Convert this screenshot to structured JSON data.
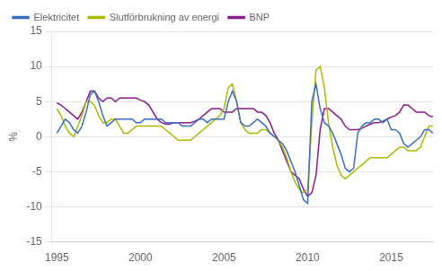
{
  "chart_data": {
    "type": "line",
    "ylabel": "%",
    "x": [
      1995.0,
      1995.25,
      1995.5,
      1995.75,
      1996.0,
      1996.25,
      1996.5,
      1996.75,
      1997.0,
      1997.25,
      1997.5,
      1997.75,
      1998.0,
      1998.25,
      1998.5,
      1998.75,
      1999.0,
      1999.25,
      1999.5,
      1999.75,
      2000.0,
      2000.25,
      2000.5,
      2000.75,
      2001.0,
      2001.25,
      2001.5,
      2001.75,
      2002.0,
      2002.25,
      2002.5,
      2002.75,
      2003.0,
      2003.25,
      2003.5,
      2003.75,
      2004.0,
      2004.25,
      2004.5,
      2004.75,
      2005.0,
      2005.25,
      2005.5,
      2005.75,
      2006.0,
      2006.25,
      2006.5,
      2006.75,
      2007.0,
      2007.25,
      2007.5,
      2007.75,
      2008.0,
      2008.25,
      2008.5,
      2008.75,
      2009.0,
      2009.25,
      2009.5,
      2009.75,
      2010.0,
      2010.25,
      2010.5,
      2010.75,
      2011.0,
      2011.25,
      2011.5,
      2011.75,
      2012.0,
      2012.25,
      2012.5,
      2012.75,
      2013.0,
      2013.25,
      2013.5,
      2013.75,
      2014.0,
      2014.25,
      2014.5,
      2014.75,
      2015.0,
      2015.25,
      2015.5,
      2015.75,
      2016.0,
      2016.25,
      2016.5,
      2016.75,
      2017.0,
      2017.25,
      2017.5
    ],
    "series": [
      {
        "name": "Elektricitet",
        "color": "#3A6EBF",
        "values": [
          0.5,
          1.5,
          2.5,
          2.0,
          1.0,
          0.5,
          1.5,
          3.5,
          6.0,
          6.5,
          5.0,
          3.0,
          1.5,
          2.0,
          2.5,
          2.5,
          2.5,
          2.5,
          2.5,
          2.0,
          2.0,
          2.5,
          2.5,
          2.5,
          2.5,
          2.5,
          2.0,
          2.0,
          2.0,
          2.0,
          1.5,
          1.5,
          1.5,
          2.0,
          2.5,
          2.5,
          2.0,
          2.5,
          2.5,
          2.5,
          2.5,
          5.0,
          6.5,
          5.0,
          2.0,
          1.5,
          1.5,
          2.0,
          2.5,
          2.0,
          1.5,
          0.5,
          0.0,
          -0.5,
          -1.0,
          -2.0,
          -3.5,
          -5.0,
          -7.0,
          -9.0,
          -9.5,
          5.0,
          7.5,
          4.0,
          2.0,
          1.5,
          0.5,
          -1.0,
          -2.5,
          -4.5,
          -5.0,
          -4.5,
          0.5,
          1.5,
          2.0,
          2.0,
          2.5,
          2.5,
          2.0,
          2.5,
          1.0,
          1.0,
          0.5,
          -1.0,
          -1.5,
          -1.0,
          -0.5,
          0.0,
          1.0,
          1.0,
          0.5
        ]
      },
      {
        "name": "Slutförbrukning av energi",
        "color": "#AABC00",
        "values": [
          4.0,
          3.0,
          1.5,
          0.5,
          0.0,
          1.5,
          3.0,
          5.0,
          5.0,
          4.5,
          3.0,
          2.0,
          2.0,
          2.5,
          2.5,
          1.5,
          0.5,
          0.5,
          1.0,
          1.5,
          1.5,
          1.5,
          1.5,
          1.5,
          1.5,
          1.5,
          1.0,
          0.5,
          0.0,
          -0.5,
          -0.5,
          -0.5,
          -0.5,
          0.0,
          0.5,
          1.0,
          1.5,
          2.0,
          2.5,
          3.0,
          4.0,
          7.0,
          7.5,
          5.0,
          2.0,
          1.0,
          0.5,
          0.5,
          0.5,
          1.0,
          1.0,
          0.5,
          0.0,
          -0.5,
          -1.5,
          -3.0,
          -5.0,
          -6.5,
          -7.5,
          -8.0,
          -7.5,
          2.0,
          9.5,
          10.0,
          7.0,
          2.0,
          -1.5,
          -4.0,
          -5.5,
          -6.0,
          -5.5,
          -5.0,
          -4.5,
          -4.0,
          -3.5,
          -3.0,
          -3.0,
          -3.0,
          -3.0,
          -3.0,
          -2.5,
          -2.0,
          -1.5,
          -1.5,
          -2.0,
          -2.0,
          -2.0,
          -1.5,
          0.0,
          1.5,
          1.5
        ]
      },
      {
        "name": "BNP",
        "color": "#8B1A8B",
        "values": [
          4.8,
          4.5,
          4.0,
          3.5,
          3.0,
          2.5,
          3.5,
          5.0,
          6.5,
          6.5,
          5.5,
          5.0,
          5.5,
          5.5,
          5.0,
          5.5,
          5.5,
          5.5,
          5.5,
          5.5,
          5.2,
          5.0,
          4.5,
          3.5,
          2.5,
          2.0,
          1.8,
          1.8,
          2.0,
          2.0,
          2.0,
          2.0,
          2.0,
          2.2,
          2.5,
          3.0,
          3.5,
          4.0,
          4.0,
          4.0,
          3.5,
          3.5,
          3.5,
          4.0,
          4.0,
          4.0,
          4.0,
          4.0,
          3.5,
          3.5,
          3.0,
          2.0,
          0.5,
          -0.5,
          -2.0,
          -3.5,
          -5.0,
          -5.5,
          -6.0,
          -7.5,
          -8.5,
          -8.0,
          -5.5,
          1.0,
          4.0,
          4.0,
          3.5,
          3.0,
          2.5,
          1.5,
          1.0,
          1.0,
          1.0,
          1.2,
          1.5,
          1.8,
          2.0,
          2.0,
          2.2,
          2.5,
          2.8,
          3.0,
          3.5,
          4.5,
          4.5,
          4.0,
          3.5,
          3.5,
          3.5,
          3.0,
          2.8
        ]
      }
    ],
    "xlim": [
      1994.7,
      2017.5
    ],
    "xticks": [
      1995,
      2000,
      2005,
      2010,
      2015
    ],
    "ylim": [
      -15,
      15
    ],
    "yticks": [
      -15,
      -10,
      -5,
      0,
      5,
      10,
      15
    ],
    "grid": "y",
    "legend": "top"
  }
}
